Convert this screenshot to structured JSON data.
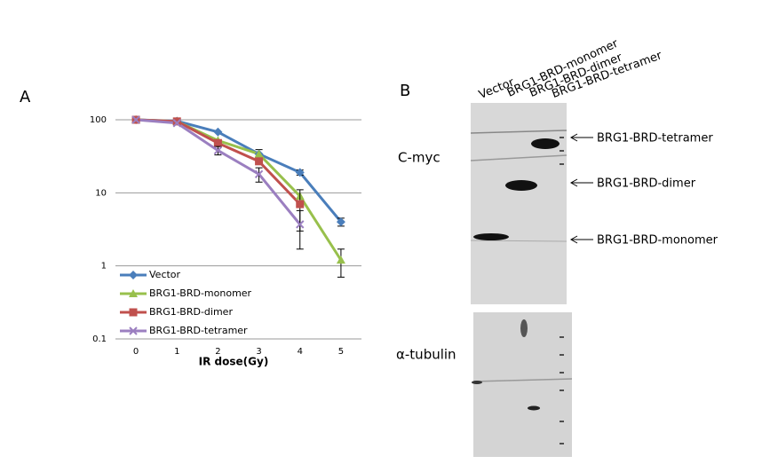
{
  "chart_data": {
    "type": "line",
    "title": "A",
    "x_label": "IR dose(Gy)",
    "categories": [
      "0",
      "1",
      "2",
      "3",
      "4",
      "5"
    ],
    "log_y": true,
    "ylim": [
      0.1,
      100
    ],
    "yticks": [
      0.1,
      1,
      10,
      100
    ],
    "grid": true,
    "legend": "lower-left",
    "series": [
      {
        "name": "Vector",
        "color": "#4a7ebb",
        "marker": "diamond",
        "values": [
          100,
          96,
          68,
          34,
          19,
          4
        ],
        "errors": [
          null,
          null,
          null,
          5,
          1.5,
          0.5
        ]
      },
      {
        "name": "BRG1-BRD-monomer",
        "color": "#98c04c",
        "marker": "triangle",
        "values": [
          100,
          95,
          52,
          34,
          9,
          1.2
        ],
        "errors": [
          null,
          null,
          null,
          null,
          null,
          0.5
        ]
      },
      {
        "name": "BRG1-BRD-dimer",
        "color": "#c0504d",
        "marker": "square",
        "values": [
          100,
          95,
          48,
          27,
          7,
          null
        ],
        "errors": [
          null,
          null,
          null,
          null,
          4,
          null
        ]
      },
      {
        "name": "BRG1-BRD-tetramer",
        "color": "#9b7fc0",
        "marker": "x",
        "values": [
          100,
          90,
          38,
          18,
          3.7,
          null
        ],
        "errors": [
          null,
          null,
          5,
          4,
          2,
          null
        ]
      }
    ]
  },
  "blot": {
    "title": "B",
    "lanes": [
      "Vector",
      "BRG1-BRD-monomer",
      "BRG1-BRD-dimer",
      "BRG1-BRD-tetramer"
    ],
    "rows": [
      "C-myc",
      "α-tubulin"
    ],
    "bands": [
      "BRG1-BRD-tetramer",
      "BRG1-BRD-dimer",
      "BRG1-BRD-monomer"
    ]
  }
}
